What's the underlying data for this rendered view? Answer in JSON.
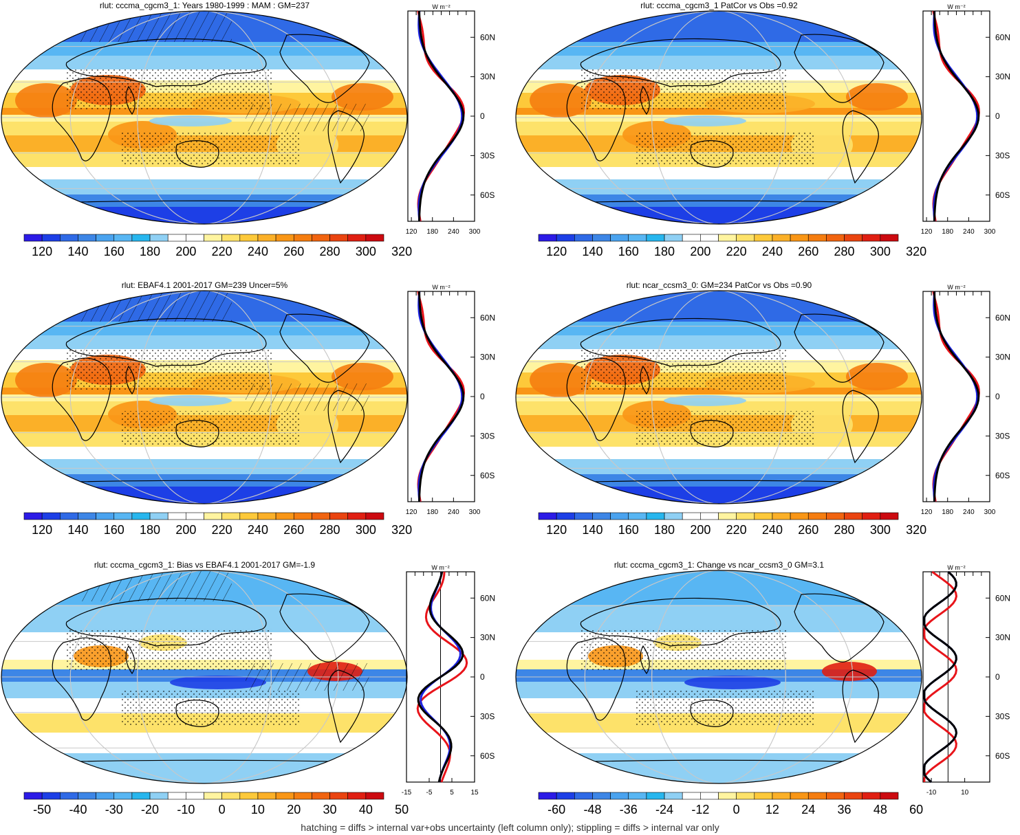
{
  "panels": [
    {
      "title": "rlut: cccma_cgcm3_1: Years 1980-1999 : MAM : GM=237",
      "kind": "clim",
      "hatch": true,
      "stipple": true,
      "bias": false
    },
    {
      "title": "rlut: cccma_cgcm3_1 PatCor vs Obs =0.92",
      "kind": "clim",
      "hatch": false,
      "stipple": true,
      "bias": false
    },
    {
      "title": "rlut: EBAF4.1 2001-2017 GM=239 Uncer=5%",
      "kind": "clim",
      "hatch": true,
      "stipple": true,
      "bias": false
    },
    {
      "title": "rlut: ncar_ccsm3_0: GM=234 PatCor vs Obs =0.90",
      "kind": "clim",
      "hatch": false,
      "stipple": true,
      "bias": false
    },
    {
      "title": "rlut: cccma_cgcm3_1: Bias vs EBAF4.1 2001-2017 GM=-1.9",
      "kind": "diff",
      "hatch": true,
      "stipple": true,
      "bias": true
    },
    {
      "title": "rlut: cccma_cgcm3_1: Change vs ncar_ccsm3_0 GM=3.1",
      "kind": "diff",
      "hatch": false,
      "stipple": true,
      "bias": true
    }
  ],
  "colorbars": {
    "clim": {
      "labels": [
        "120",
        "140",
        "160",
        "180",
        "200",
        "220",
        "240",
        "260",
        "280",
        "300",
        "320"
      ],
      "colors": [
        "#2c1be6",
        "#1d3fe6",
        "#2f6ae6",
        "#3d86e6",
        "#4aa3ef",
        "#58b6f3",
        "#27b6ee",
        "#8fd0f4",
        "#ffffff",
        "#ffffff",
        "#fff4a0",
        "#fde26a",
        "#fdc93a",
        "#fbb028",
        "#f99616",
        "#f57d10",
        "#f16410",
        "#ea4410",
        "#e01f12",
        "#cc0a10"
      ]
    },
    "diff1": {
      "labels": [
        "-50",
        "-40",
        "-30",
        "-20",
        "-10",
        "0",
        "10",
        "20",
        "30",
        "40",
        "50"
      ],
      "colors": [
        "#2c1be6",
        "#1d3fe6",
        "#2f6ae6",
        "#3d86e6",
        "#4aa3ef",
        "#58b6f3",
        "#27b6ee",
        "#8fd0f4",
        "#ffffff",
        "#ffffff",
        "#fff4a0",
        "#fde26a",
        "#fdc93a",
        "#fbb028",
        "#f99616",
        "#f57d10",
        "#f16410",
        "#ea4410",
        "#e01f12",
        "#cc0a10"
      ]
    },
    "diff2": {
      "labels": [
        "-60",
        "-48",
        "-36",
        "-24",
        "-12",
        "0",
        "12",
        "24",
        "36",
        "48",
        "60"
      ],
      "colors": [
        "#2c1be6",
        "#1d3fe6",
        "#2f6ae6",
        "#3d86e6",
        "#4aa3ef",
        "#58b6f3",
        "#27b6ee",
        "#8fd0f4",
        "#ffffff",
        "#ffffff",
        "#fff4a0",
        "#fde26a",
        "#fdc93a",
        "#fbb028",
        "#f99616",
        "#f57d10",
        "#f16410",
        "#ea4410",
        "#e01f12",
        "#cc0a10"
      ]
    }
  },
  "profile": {
    "unit": "W m⁻²",
    "lat_labels": [
      "60N",
      "30N",
      "0",
      "30S",
      "60S"
    ],
    "lat_values": [
      60,
      30,
      0,
      -30,
      -60
    ],
    "clim_x_labels": [
      "120",
      "180",
      "240",
      "300"
    ],
    "clim_x_values": [
      120,
      180,
      240,
      300
    ],
    "bias_x_labels": [
      "-15",
      "-5",
      "5",
      "15"
    ],
    "bias_x_values": [
      -15,
      -5,
      5,
      15
    ],
    "change_x_labels": [
      "-10",
      "10"
    ],
    "change_x_values": [
      -10,
      10
    ]
  },
  "footer": "hatching = diffs > internal var+obs uncertainty (left column only); stippling = diffs > internal var only",
  "colors": {
    "model": "#e8141a",
    "obs": "#1b22e0",
    "mean": "#000000",
    "graticule": "#c8c8c8"
  }
}
